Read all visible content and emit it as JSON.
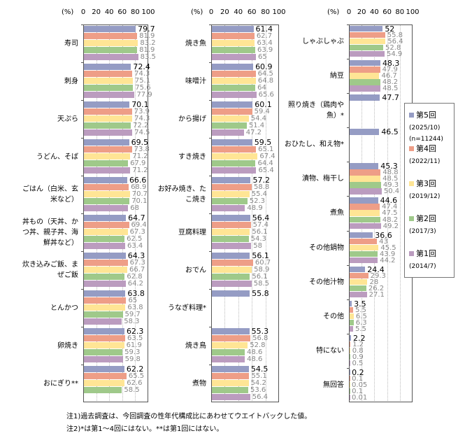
{
  "chart_data": {
    "type": "bar",
    "orientation": "horizontal",
    "unit_label": "(%)",
    "xlim": [
      0,
      100
    ],
    "ticks": [
      "0",
      "20",
      "40",
      "60",
      "80",
      "100"
    ],
    "grid": true,
    "legend_placement": "right",
    "series": [
      {
        "name": "第5回",
        "sub": [
          "(2025/10)",
          "(n=11244)"
        ],
        "color": "#959cc4"
      },
      {
        "name": "第4回",
        "sub": [
          "(2022/11)"
        ],
        "color": "#ee9e87"
      },
      {
        "name": "第3回",
        "sub": [
          "(2019/12)"
        ],
        "color": "#ffe595"
      },
      {
        "name": "第2回",
        "sub": [
          "(2017/3)"
        ],
        "color": "#9fc98a"
      },
      {
        "name": "第1回",
        "sub": [
          "(2014/7)"
        ],
        "color": "#bb9cbf"
      }
    ],
    "panels": [
      {
        "categories": [
          {
            "label": "寿司",
            "values": [
              79.7,
              81.9,
              83.2,
              81.9,
              83.5
            ]
          },
          {
            "label": "刺身",
            "values": [
              72.4,
              74.3,
              75.1,
              75.6,
              77.9
            ]
          },
          {
            "label": "天ぷら",
            "values": [
              70.1,
              73.9,
              74.3,
              72.2,
              74.5
            ]
          },
          {
            "label": "うどん、そば",
            "values": [
              69.5,
              73.8,
              71.2,
              67.9,
              71.2
            ]
          },
          {
            "label": "ごはん（白米、玄米など）",
            "values": [
              66.6,
              68.9,
              70.7,
              70.1,
              68.0
            ]
          },
          {
            "label": "丼もの（天丼、かつ丼、親子丼、海鮮丼など）",
            "values": [
              64.7,
              69.4,
              67.3,
              62.5,
              63.4
            ]
          },
          {
            "label": "炊き込みご飯、まぜご飯",
            "values": [
              64.3,
              67.3,
              66.7,
              62.8,
              64.2
            ]
          },
          {
            "label": "とんかつ",
            "values": [
              63.8,
              65.0,
              63.8,
              59.7,
              58.3
            ]
          },
          {
            "label": "卵焼き",
            "values": [
              62.3,
              63.5,
              61.9,
              59.3,
              59.8
            ]
          },
          {
            "label": "おにぎり**",
            "values": [
              62.2,
              65.5,
              62.6,
              58.5,
              null
            ]
          }
        ]
      },
      {
        "categories": [
          {
            "label": "焼き魚",
            "values": [
              61.4,
              62.7,
              63.4,
              63.9,
              65.0
            ]
          },
          {
            "label": "味噌汁",
            "values": [
              60.9,
              64.5,
              64.8,
              64.0,
              65.6
            ]
          },
          {
            "label": "から揚げ",
            "values": [
              60.1,
              59.4,
              54.4,
              51.4,
              47.2
            ]
          },
          {
            "label": "すき焼き",
            "values": [
              59.5,
              65.1,
              67.4,
              64.4,
              65.4
            ]
          },
          {
            "label": "お好み焼き、たこ焼き",
            "values": [
              57.2,
              58.8,
              55.4,
              52.3,
              48.9
            ]
          },
          {
            "label": "豆腐料理",
            "values": [
              56.4,
              57.4,
              56.1,
              54.3,
              58.0
            ]
          },
          {
            "label": "おでん",
            "values": [
              56.1,
              60.7,
              58.9,
              56.1,
              58.5
            ]
          },
          {
            "label": "うなぎ料理*",
            "values": [
              55.8,
              null,
              null,
              null,
              null
            ]
          },
          {
            "label": "焼き鳥",
            "values": [
              55.3,
              56.8,
              52.8,
              48.6,
              48.6
            ]
          },
          {
            "label": "煮物",
            "values": [
              54.5,
              55.1,
              54.2,
              53.6,
              56.4
            ]
          }
        ]
      },
      {
        "categories": [
          {
            "label": "しゃぶしゃぶ",
            "values": [
              52.0,
              55.8,
              56.4,
              52.8,
              54.9
            ]
          },
          {
            "label": "納豆",
            "values": [
              48.3,
              47.9,
              46.7,
              48.2,
              48.5
            ]
          },
          {
            "label": "照り焼き（鶏肉や魚）*",
            "values": [
              47.7,
              null,
              null,
              null,
              null
            ]
          },
          {
            "label": "おひたし、和え物*",
            "values": [
              46.5,
              null,
              null,
              null,
              null
            ]
          },
          {
            "label": "漬物、梅干し",
            "values": [
              45.3,
              48.8,
              48.5,
              49.3,
              50.4
            ]
          },
          {
            "label": "煮魚",
            "values": [
              44.6,
              47.4,
              47.5,
              48.2,
              49.2
            ]
          },
          {
            "label": "その他鍋物",
            "values": [
              36.6,
              43.0,
              45.5,
              43.9,
              44.2
            ]
          },
          {
            "label": "その他汁物",
            "values": [
              24.4,
              29.3,
              28.0,
              26.2,
              27.1
            ]
          },
          {
            "label": "その他",
            "values": [
              3.5,
              5.5,
              6.5,
              6.3,
              5.5
            ]
          },
          {
            "label": "特にない",
            "values": [
              2.2,
              1.2,
              0.8,
              0.9,
              0.5
            ]
          },
          {
            "label": "無回答",
            "values": [
              0.2,
              0.1,
              0.05,
              0.1,
              0.01
            ]
          }
        ]
      }
    ]
  },
  "notes": [
    "注1)過去調査は、今回調査の性年代構成比にあわせてウエイトバックした値。",
    "注2)*は第1～4回にはない。**は第1回にはない。"
  ]
}
